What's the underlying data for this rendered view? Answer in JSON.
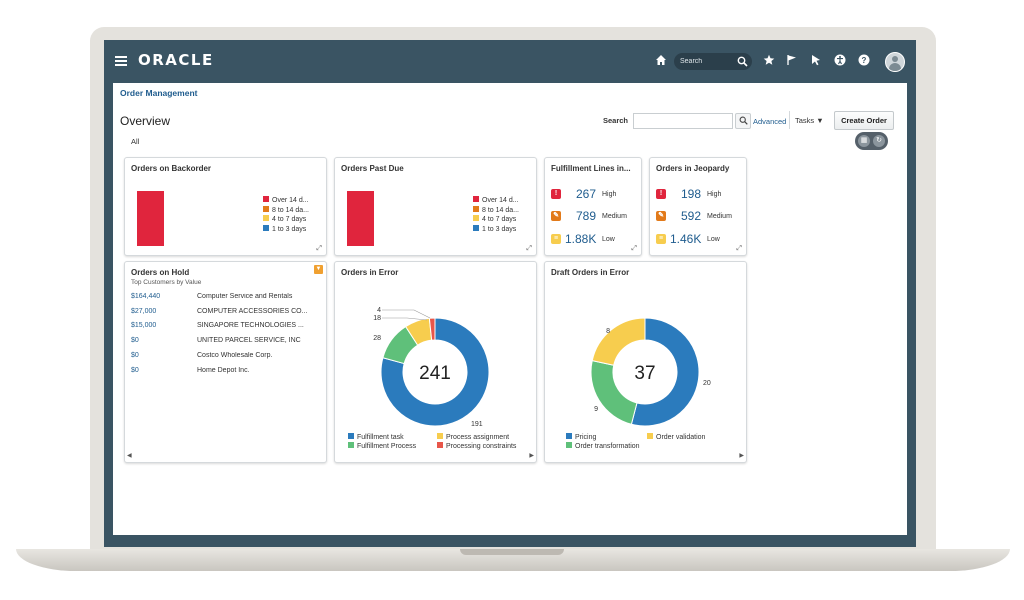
{
  "app": {
    "logo": "ORACLE",
    "search_placeholder": "Search",
    "breadcrumb": "Order Management",
    "page_title": "Overview",
    "filter_tab": "All",
    "search_label": "Search",
    "advanced_link": "Advanced",
    "tasks_menu": "Tasks ▼",
    "create_order_button": "Create Order"
  },
  "cards": {
    "backorder": {
      "title": "Orders on Backorder",
      "legend": [
        "Over 14 d...",
        "8 to 14 da...",
        "4 to 7 days",
        "1 to 3 days"
      ]
    },
    "pastdue": {
      "title": "Orders Past Due",
      "legend": [
        "Over 14 d...",
        "8 to 14 da...",
        "4 to 7 days",
        "1 to 3 days"
      ]
    },
    "fulfillment": {
      "title": "Fulfillment Lines in...",
      "rows": [
        {
          "count": "267",
          "label": "High"
        },
        {
          "count": "789",
          "label": "Medium"
        },
        {
          "count": "1.88K",
          "label": "Low"
        }
      ]
    },
    "jeopardy": {
      "title": "Orders in Jeopardy",
      "rows": [
        {
          "count": "198",
          "label": "High"
        },
        {
          "count": "592",
          "label": "Medium"
        },
        {
          "count": "1.46K",
          "label": "Low"
        }
      ]
    },
    "hold": {
      "title": "Orders on Hold",
      "subtitle": "Top Customers by Value",
      "rows": [
        {
          "amount": "$164,440",
          "customer": "Computer Service and Rentals"
        },
        {
          "amount": "$27,000",
          "customer": "COMPUTER ACCESSORIES CO..."
        },
        {
          "amount": "$15,000",
          "customer": "SINGAPORE TECHNOLOGIES ..."
        },
        {
          "amount": "$0",
          "customer": "UNITED PARCEL SERVICE, INC"
        },
        {
          "amount": "$0",
          "customer": "Costco Wholesale Corp."
        },
        {
          "amount": "$0",
          "customer": "Home Depot Inc."
        }
      ]
    },
    "error": {
      "title": "Orders in Error",
      "total": "241",
      "legend": [
        "Fulfillment task",
        "Process assignment",
        "Fulfillment Process",
        "Processing constraints"
      ]
    },
    "draft": {
      "title": "Draft Orders in Error",
      "total": "37",
      "legend": [
        "Pricing",
        "Order validation",
        "Order transformation"
      ]
    }
  },
  "colors": {
    "red": "#e0253d",
    "orange": "#e27a1a",
    "yellow": "#f7cd4e",
    "blue": "#2b7bbd",
    "green": "#5fc07a",
    "brand": "#3a5463",
    "link": "#1f5c8e"
  },
  "chart_data": [
    {
      "type": "bar",
      "title": "Orders on Backorder",
      "series": [
        {
          "name": "Over 14 d...",
          "values": [
            1
          ]
        },
        {
          "name": "8 to 14 da...",
          "values": [
            0
          ]
        },
        {
          "name": "4 to 7 days",
          "values": [
            0
          ]
        },
        {
          "name": "1 to 3 days",
          "values": [
            0
          ]
        }
      ],
      "legend": "right"
    },
    {
      "type": "bar",
      "title": "Orders Past Due",
      "series": [
        {
          "name": "Over 14 d...",
          "values": [
            1
          ]
        },
        {
          "name": "8 to 14 da...",
          "values": [
            0
          ]
        },
        {
          "name": "4 to 7 days",
          "values": [
            0
          ]
        },
        {
          "name": "1 to 3 days",
          "values": [
            0
          ]
        }
      ],
      "legend": "right"
    },
    {
      "type": "pie",
      "title": "Orders in Error",
      "total": 241,
      "slices": [
        {
          "name": "Fulfillment task",
          "value": 191,
          "color": "#2b7bbd"
        },
        {
          "name": "Fulfillment Process",
          "value": 28,
          "color": "#5fc07a"
        },
        {
          "name": "Process assignment",
          "value": 18,
          "color": "#f7cd4e"
        },
        {
          "name": "Processing constraints",
          "value": 4,
          "color": "#e8564a"
        }
      ]
    },
    {
      "type": "pie",
      "title": "Draft Orders in Error",
      "total": 37,
      "slices": [
        {
          "name": "Pricing",
          "value": 20,
          "color": "#2b7bbd"
        },
        {
          "name": "Order transformation",
          "value": 9,
          "color": "#5fc07a"
        },
        {
          "name": "Order validation",
          "value": 8,
          "color": "#f7cd4e"
        }
      ]
    }
  ]
}
